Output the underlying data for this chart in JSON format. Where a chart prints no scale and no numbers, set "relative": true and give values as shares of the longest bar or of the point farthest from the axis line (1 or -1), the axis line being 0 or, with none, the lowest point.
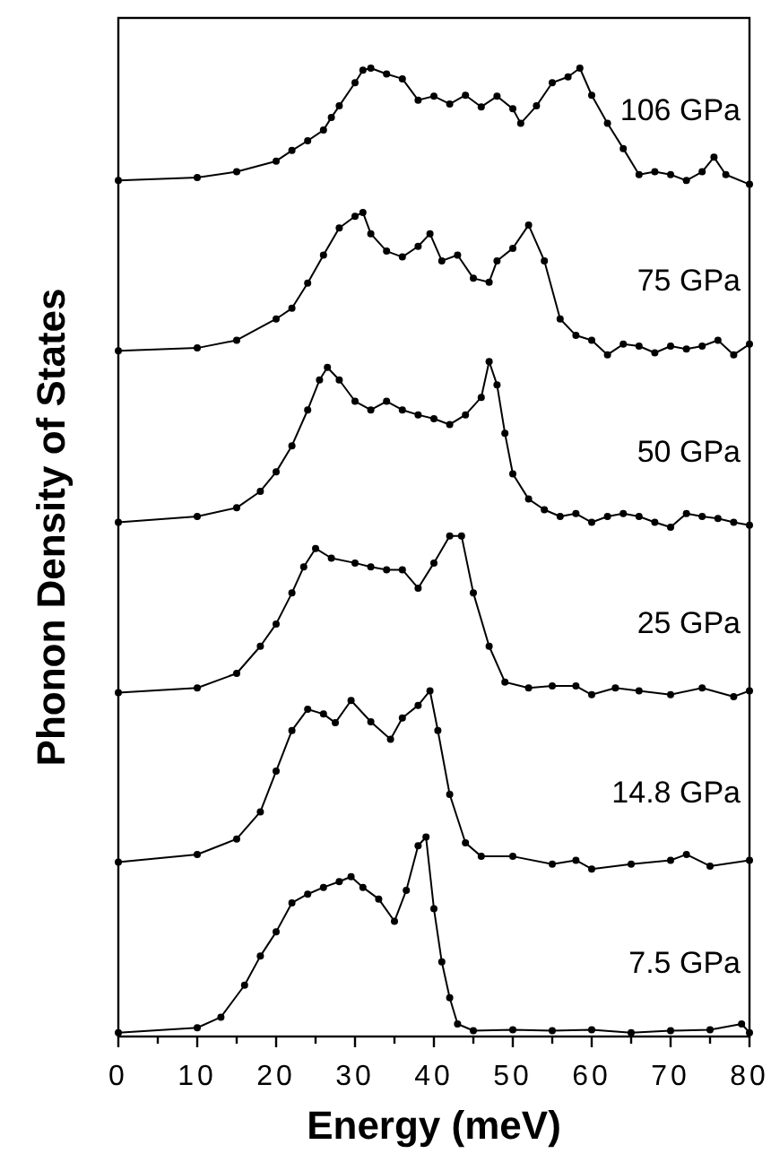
{
  "chart_data": {
    "type": "line",
    "xlabel": "Energy (meV)",
    "ylabel": "Phonon Density of States",
    "relative": true,
    "marker": "circle",
    "grid": false,
    "xlim": [
      0,
      80
    ],
    "xticks": [
      0,
      {
        "value": 5,
        "label": null
      },
      10,
      {
        "value": 15,
        "label": null
      },
      20,
      {
        "value": 25,
        "label": null
      },
      30,
      {
        "value": 35,
        "label": null
      },
      40,
      {
        "value": 45,
        "label": null
      },
      50,
      {
        "value": 55,
        "label": null
      },
      60,
      {
        "value": 65,
        "label": null
      },
      70,
      {
        "value": 75,
        "label": null
      },
      80
    ],
    "series": [
      {
        "name": "106 GPa",
        "color": "#000000",
        "x": [
          0,
          10,
          15,
          20,
          22,
          24,
          26,
          27,
          28,
          30,
          31,
          32,
          34,
          36,
          38,
          40,
          42,
          44,
          46,
          48,
          50,
          51,
          53,
          55,
          57,
          58.5,
          60,
          62,
          64,
          66,
          68,
          70,
          72,
          74,
          75.5,
          77,
          80
        ],
        "values": [
          0.884,
          0.887,
          0.893,
          0.904,
          0.915,
          0.925,
          0.936,
          0.949,
          0.961,
          0.985,
          0.998,
          1.0,
          0.994,
          0.989,
          0.967,
          0.971,
          0.963,
          0.972,
          0.96,
          0.971,
          0.958,
          0.943,
          0.961,
          0.985,
          0.991,
          1.0,
          0.972,
          0.943,
          0.917,
          0.89,
          0.893,
          0.89,
          0.884,
          0.893,
          0.908,
          0.89,
          0.88
        ]
      },
      {
        "name": "75 GPa",
        "color": "#000000",
        "x": [
          0,
          10,
          15,
          20,
          22,
          24,
          26,
          28,
          30,
          31,
          32,
          34,
          36,
          38,
          39.5,
          41,
          43,
          45,
          47,
          48,
          50,
          52,
          54,
          56,
          58,
          60,
          62,
          64,
          66,
          68,
          70,
          72,
          74,
          76,
          78,
          80
        ],
        "values": [
          0.708,
          0.711,
          0.719,
          0.741,
          0.752,
          0.778,
          0.807,
          0.835,
          0.847,
          0.851,
          0.829,
          0.811,
          0.805,
          0.816,
          0.829,
          0.801,
          0.807,
          0.783,
          0.779,
          0.801,
          0.814,
          0.838,
          0.801,
          0.741,
          0.724,
          0.719,
          0.704,
          0.715,
          0.713,
          0.706,
          0.713,
          0.71,
          0.713,
          0.719,
          0.704,
          0.715
        ]
      },
      {
        "name": "50 GPa",
        "color": "#000000",
        "x": [
          0,
          10,
          15,
          18,
          20,
          22,
          24,
          25.5,
          26.5,
          28,
          30,
          32,
          34,
          36,
          38,
          40,
          42,
          44,
          46,
          47,
          48,
          49,
          50,
          52,
          54,
          56,
          58,
          60,
          62,
          64,
          66,
          68,
          70,
          72,
          74,
          76,
          78,
          80
        ],
        "values": [
          0.531,
          0.537,
          0.546,
          0.563,
          0.583,
          0.61,
          0.647,
          0.678,
          0.691,
          0.678,
          0.656,
          0.647,
          0.656,
          0.647,
          0.642,
          0.638,
          0.632,
          0.642,
          0.66,
          0.697,
          0.673,
          0.623,
          0.581,
          0.555,
          0.544,
          0.537,
          0.54,
          0.531,
          0.537,
          0.54,
          0.537,
          0.531,
          0.526,
          0.54,
          0.537,
          0.535,
          0.531,
          0.528
        ]
      },
      {
        "name": "25 GPa",
        "color": "#000000",
        "x": [
          0,
          10,
          15,
          18,
          20,
          22,
          23.5,
          25,
          27,
          30,
          32,
          34,
          36,
          38,
          40,
          42,
          43.5,
          45,
          47,
          49,
          52,
          55,
          58,
          60,
          63,
          66,
          70,
          74,
          78,
          80
        ],
        "values": [
          0.355,
          0.36,
          0.375,
          0.403,
          0.426,
          0.458,
          0.485,
          0.504,
          0.494,
          0.489,
          0.485,
          0.482,
          0.482,
          0.463,
          0.489,
          0.517,
          0.517,
          0.458,
          0.403,
          0.366,
          0.36,
          0.362,
          0.362,
          0.353,
          0.36,
          0.357,
          0.353,
          0.36,
          0.351,
          0.357
        ]
      },
      {
        "name": "14.8 GPa",
        "color": "#000000",
        "x": [
          0,
          10,
          15,
          18,
          20,
          22,
          24,
          26,
          27.5,
          29.5,
          32,
          34.5,
          36,
          38,
          39.5,
          40.5,
          42,
          44,
          46,
          50,
          55,
          58,
          60,
          65,
          70,
          72,
          75,
          80
        ],
        "values": [
          0.18,
          0.188,
          0.204,
          0.232,
          0.274,
          0.316,
          0.338,
          0.333,
          0.324,
          0.347,
          0.325,
          0.307,
          0.329,
          0.342,
          0.357,
          0.316,
          0.25,
          0.2,
          0.186,
          0.186,
          0.178,
          0.182,
          0.173,
          0.178,
          0.182,
          0.188,
          0.176,
          0.182
        ]
      },
      {
        "name": "7.5 GPa",
        "color": "#000000",
        "x": [
          0,
          10,
          13,
          16,
          18,
          20,
          22,
          24,
          26,
          28,
          29.5,
          31,
          33,
          35,
          36.5,
          38,
          39,
          40,
          41,
          42,
          43,
          45,
          50,
          55,
          60,
          65,
          70,
          75,
          79,
          80
        ],
        "values": [
          0.004,
          0.009,
          0.02,
          0.053,
          0.083,
          0.108,
          0.138,
          0.147,
          0.154,
          0.16,
          0.165,
          0.154,
          0.142,
          0.119,
          0.151,
          0.197,
          0.206,
          0.132,
          0.077,
          0.04,
          0.013,
          0.006,
          0.007,
          0.006,
          0.007,
          0.004,
          0.006,
          0.007,
          0.013,
          0.004
        ]
      }
    ]
  }
}
